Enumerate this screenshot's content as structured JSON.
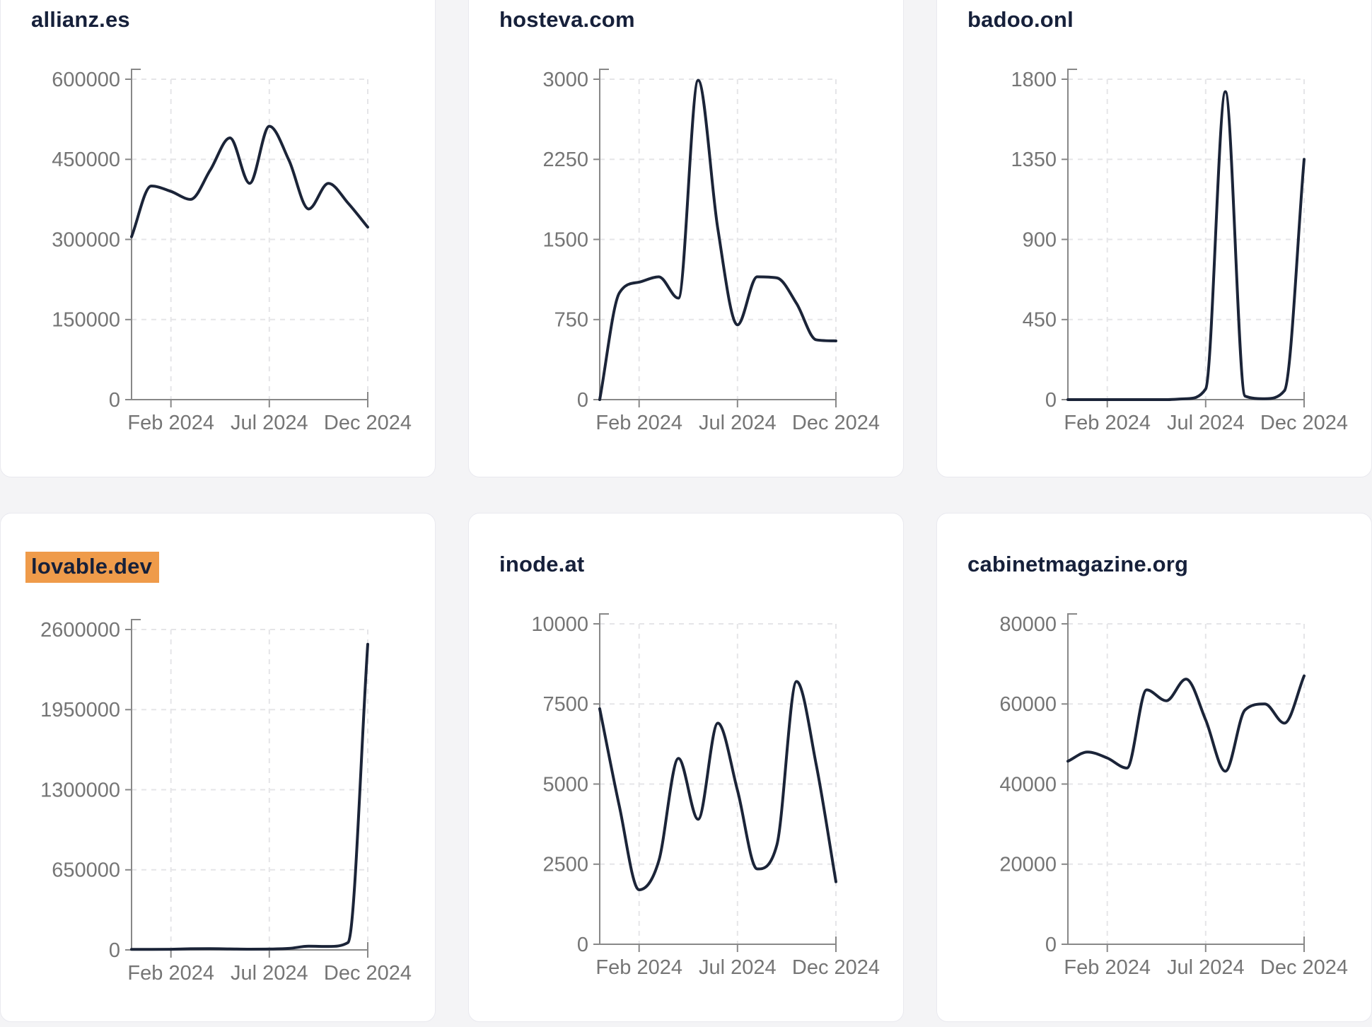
{
  "page": {
    "background_color": "#f4f4f6"
  },
  "colors": {
    "card_background": "#ffffff",
    "card_border": "#e9e9ef",
    "title_text": "#16203a",
    "axis_line": "#888888",
    "axis_tick_text": "#757575",
    "gridline": "#e5e5e8",
    "series_line": "#1b2438",
    "title_highlight": "#ef9b4a"
  },
  "chart_data": [
    {
      "type": "line",
      "title": "allianz.es",
      "title_highlighted": false,
      "x": [
        "2023-12",
        "2024-01",
        "2024-02",
        "2024-03",
        "2024-04",
        "2024-05",
        "2024-06",
        "2024-07",
        "2024-08",
        "2024-09",
        "2024-10",
        "2024-11",
        "2024-12"
      ],
      "values": [
        305000,
        400000,
        390000,
        375000,
        430000,
        490000,
        405000,
        512000,
        448000,
        357000,
        405000,
        368000,
        323000
      ],
      "ylim": [
        0,
        600000
      ],
      "y_ticks": [
        0,
        150000,
        300000,
        450000,
        600000
      ],
      "x_ticks": [
        {
          "label": "Feb 2024",
          "month_index": 2
        },
        {
          "label": "Jul 2024",
          "month_index": 7
        },
        {
          "label": "Dec 2024",
          "month_index": 12
        }
      ],
      "grid": true,
      "legend": "none"
    },
    {
      "type": "line",
      "title": "hosteva.com",
      "title_highlighted": false,
      "x": [
        "2023-12",
        "2024-01",
        "2024-02",
        "2024-03",
        "2024-04",
        "2024-05",
        "2024-06",
        "2024-07",
        "2024-08",
        "2024-09",
        "2024-10",
        "2024-11",
        "2024-12"
      ],
      "values": [
        0,
        1000,
        1100,
        1150,
        950,
        2990,
        1600,
        700,
        1150,
        1140,
        900,
        560,
        550
      ],
      "ylim": [
        0,
        3000
      ],
      "y_ticks": [
        0,
        750,
        1500,
        2250,
        3000
      ],
      "x_ticks": [
        {
          "label": "Feb 2024",
          "month_index": 2
        },
        {
          "label": "Jul 2024",
          "month_index": 7
        },
        {
          "label": "Dec 2024",
          "month_index": 12
        }
      ],
      "grid": true,
      "legend": "none"
    },
    {
      "type": "line",
      "title": "badoo.onl",
      "title_highlighted": false,
      "x": [
        "2023-12",
        "2024-01",
        "2024-02",
        "2024-03",
        "2024-04",
        "2024-05",
        "2024-06",
        "2024-07",
        "2024-08",
        "2024-09",
        "2024-10",
        "2024-11",
        "2024-12"
      ],
      "values": [
        0,
        0,
        0,
        0,
        0,
        0,
        5,
        60,
        1730,
        20,
        5,
        50,
        1350
      ],
      "ylim": [
        0,
        1800
      ],
      "y_ticks": [
        0,
        450,
        900,
        1350,
        1800
      ],
      "x_ticks": [
        {
          "label": "Feb 2024",
          "month_index": 2
        },
        {
          "label": "Jul 2024",
          "month_index": 7
        },
        {
          "label": "Dec 2024",
          "month_index": 12
        }
      ],
      "grid": true,
      "legend": "none"
    },
    {
      "type": "line",
      "title": "lovable.dev",
      "title_highlighted": true,
      "x": [
        "2023-12",
        "2024-01",
        "2024-02",
        "2024-03",
        "2024-04",
        "2024-05",
        "2024-06",
        "2024-07",
        "2024-08",
        "2024-09",
        "2024-10",
        "2024-11",
        "2024-12"
      ],
      "values": [
        4000,
        4000,
        5000,
        9000,
        10000,
        8000,
        6000,
        7000,
        12000,
        30000,
        28000,
        60000,
        2480000
      ],
      "ylim": [
        0,
        2600000
      ],
      "y_ticks": [
        0,
        650000,
        1300000,
        1950000,
        2600000
      ],
      "x_ticks": [
        {
          "label": "Feb 2024",
          "month_index": 2
        },
        {
          "label": "Jul 2024",
          "month_index": 7
        },
        {
          "label": "Dec 2024",
          "month_index": 12
        }
      ],
      "grid": true,
      "legend": "none"
    },
    {
      "type": "line",
      "title": "inode.at",
      "title_highlighted": false,
      "x": [
        "2023-12",
        "2024-01",
        "2024-02",
        "2024-03",
        "2024-04",
        "2024-05",
        "2024-06",
        "2024-07",
        "2024-08",
        "2024-09",
        "2024-10",
        "2024-11",
        "2024-12"
      ],
      "values": [
        7350,
        4300,
        1700,
        2600,
        5800,
        3900,
        6900,
        4800,
        2350,
        3100,
        8200,
        5600,
        1950
      ],
      "ylim": [
        0,
        10000
      ],
      "y_ticks": [
        0,
        2500,
        5000,
        7500,
        10000
      ],
      "x_ticks": [
        {
          "label": "Feb 2024",
          "month_index": 2
        },
        {
          "label": "Jul 2024",
          "month_index": 7
        },
        {
          "label": "Dec 2024",
          "month_index": 12
        }
      ],
      "grid": true,
      "legend": "none"
    },
    {
      "type": "line",
      "title": "cabinetmagazine.org",
      "title_highlighted": false,
      "x": [
        "2023-12",
        "2024-01",
        "2024-02",
        "2024-03",
        "2024-04",
        "2024-05",
        "2024-06",
        "2024-07",
        "2024-08",
        "2024-09",
        "2024-10",
        "2024-11",
        "2024-12"
      ],
      "values": [
        45700,
        48000,
        46500,
        44000,
        63500,
        60800,
        66200,
        56000,
        43200,
        58500,
        60000,
        55200,
        67000
      ],
      "ylim": [
        0,
        80000
      ],
      "y_ticks": [
        0,
        20000,
        40000,
        60000,
        80000
      ],
      "x_ticks": [
        {
          "label": "Feb 2024",
          "month_index": 2
        },
        {
          "label": "Jul 2024",
          "month_index": 7
        },
        {
          "label": "Dec 2024",
          "month_index": 12
        }
      ],
      "grid": true,
      "legend": "none"
    }
  ]
}
